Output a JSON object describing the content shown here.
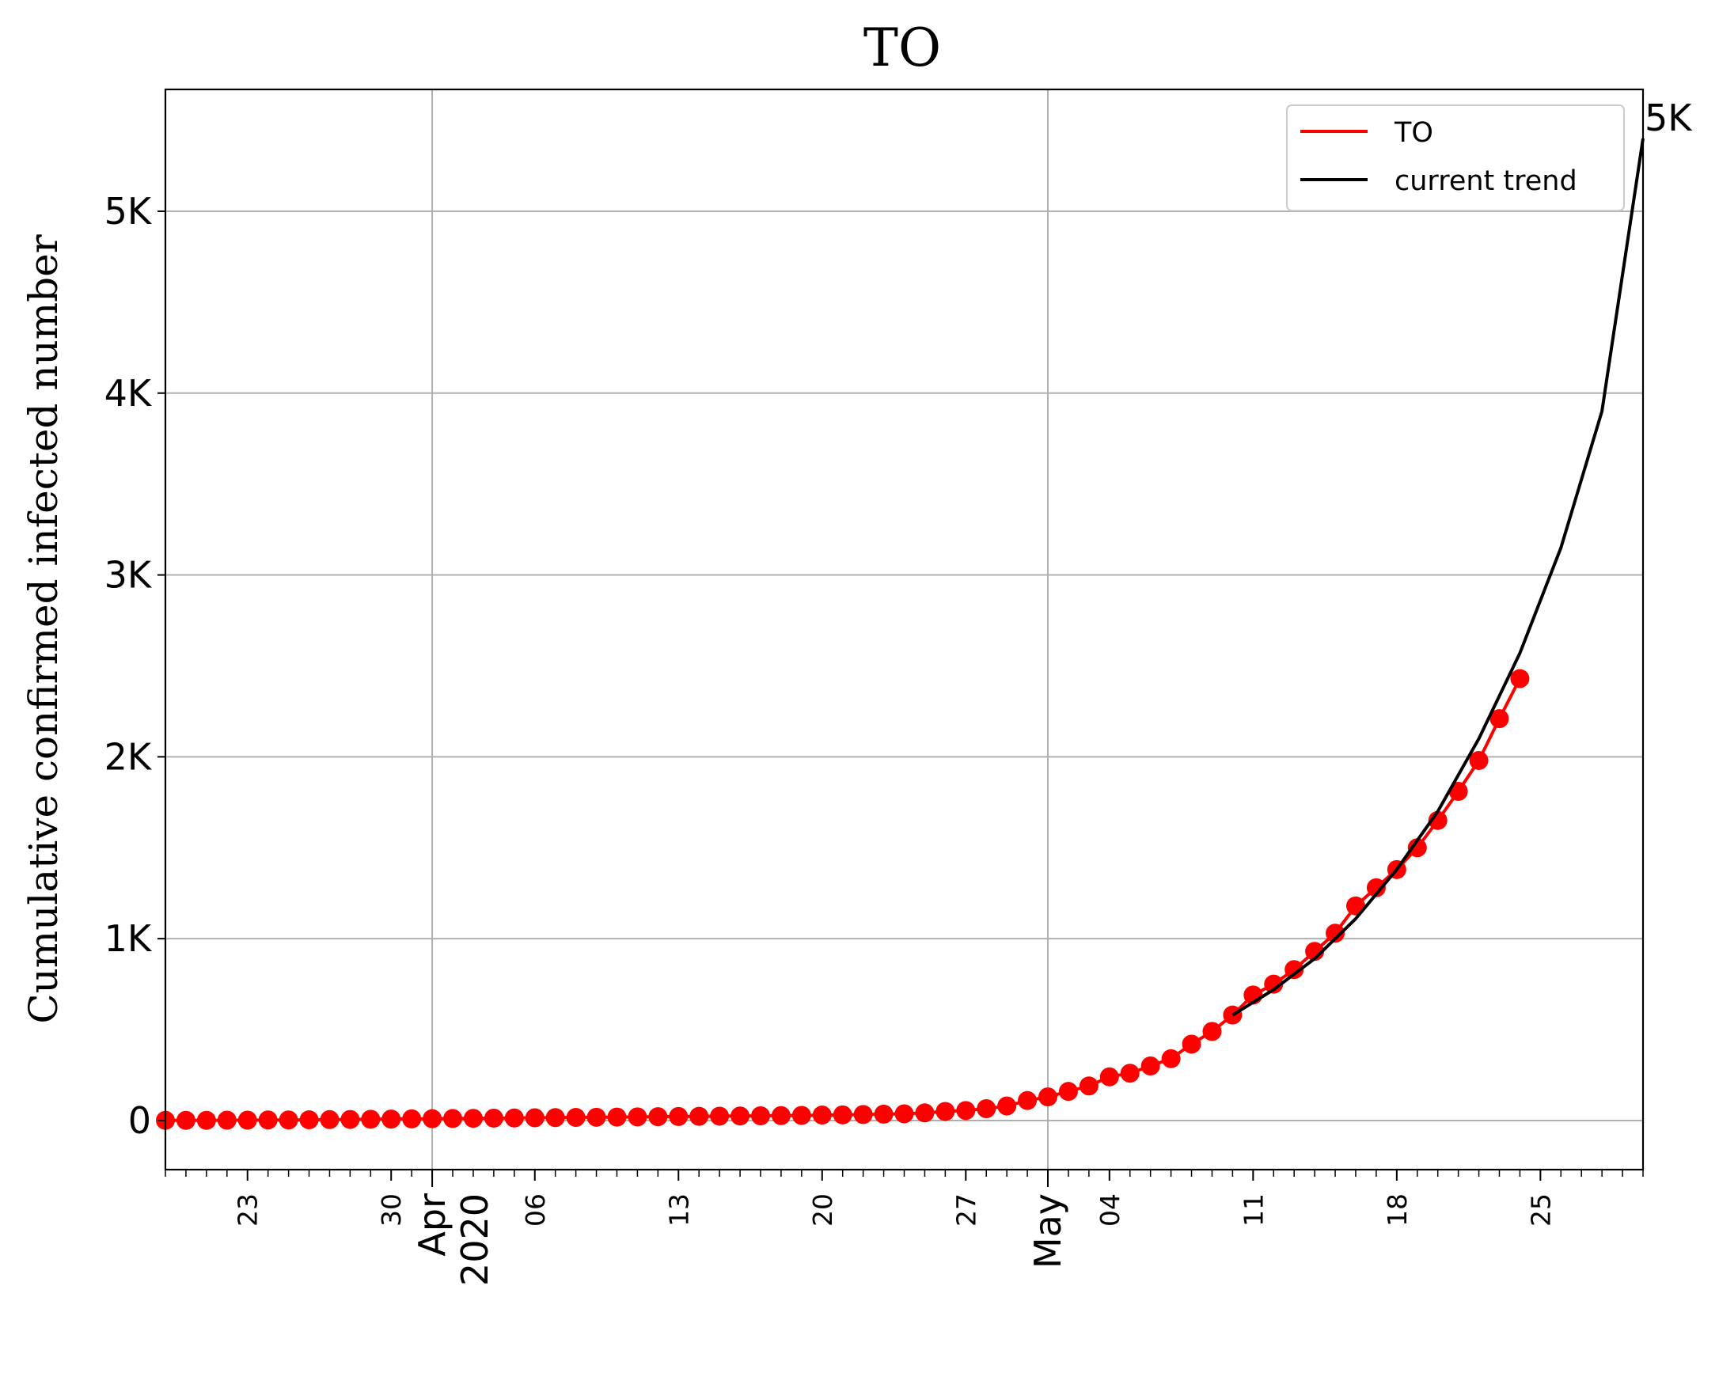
{
  "chart_data": {
    "type": "line",
    "title": "TO",
    "ylabel": "Cumulative confirmed infected number",
    "xlabel": "",
    "x_axis": {
      "type": "date",
      "range": [
        "2020-03-19",
        "2020-05-30"
      ],
      "minor_tick_labels": [
        {
          "date": "2020-03-23",
          "label": "23"
        },
        {
          "date": "2020-03-30",
          "label": "30"
        },
        {
          "date": "2020-04-06",
          "label": "06"
        },
        {
          "date": "2020-04-13",
          "label": "13"
        },
        {
          "date": "2020-04-20",
          "label": "20"
        },
        {
          "date": "2020-04-27",
          "label": "27"
        },
        {
          "date": "2020-05-04",
          "label": "04"
        },
        {
          "date": "2020-05-11",
          "label": "11"
        },
        {
          "date": "2020-05-18",
          "label": "18"
        },
        {
          "date": "2020-05-25",
          "label": "25"
        }
      ],
      "major_tick_labels": [
        {
          "date": "2020-04-01",
          "lines": [
            "Apr",
            "2020"
          ]
        },
        {
          "date": "2020-05-01",
          "lines": [
            "May"
          ]
        }
      ]
    },
    "y_axis": {
      "range": [
        -270,
        5670
      ],
      "ticks": [
        {
          "value": 0,
          "label": "0"
        },
        {
          "value": 1000,
          "label": "1K"
        },
        {
          "value": 2000,
          "label": "2K"
        },
        {
          "value": 3000,
          "label": "3K"
        },
        {
          "value": 4000,
          "label": "4K"
        },
        {
          "value": 5000,
          "label": "5K"
        }
      ]
    },
    "grid": true,
    "legend": {
      "position": "top-right",
      "entries": [
        {
          "label": "TO",
          "color": "#ff0000"
        },
        {
          "label": "current trend",
          "color": "#000000"
        }
      ]
    },
    "series": [
      {
        "name": "TO",
        "color": "#ff0000",
        "style": "line+markers",
        "points": [
          [
            "2020-03-19",
            1
          ],
          [
            "2020-03-20",
            1
          ],
          [
            "2020-03-21",
            1
          ],
          [
            "2020-03-22",
            2
          ],
          [
            "2020-03-23",
            2
          ],
          [
            "2020-03-24",
            3
          ],
          [
            "2020-03-25",
            3
          ],
          [
            "2020-03-26",
            4
          ],
          [
            "2020-03-27",
            5
          ],
          [
            "2020-03-28",
            6
          ],
          [
            "2020-03-29",
            7
          ],
          [
            "2020-03-30",
            8
          ],
          [
            "2020-03-31",
            9
          ],
          [
            "2020-04-01",
            10
          ],
          [
            "2020-04-02",
            11
          ],
          [
            "2020-04-03",
            12
          ],
          [
            "2020-04-04",
            13
          ],
          [
            "2020-04-05",
            14
          ],
          [
            "2020-04-06",
            15
          ],
          [
            "2020-04-07",
            16
          ],
          [
            "2020-04-08",
            17
          ],
          [
            "2020-04-09",
            18
          ],
          [
            "2020-04-10",
            19
          ],
          [
            "2020-04-11",
            20
          ],
          [
            "2020-04-12",
            21
          ],
          [
            "2020-04-13",
            22
          ],
          [
            "2020-04-14",
            23
          ],
          [
            "2020-04-15",
            24
          ],
          [
            "2020-04-16",
            25
          ],
          [
            "2020-04-17",
            26
          ],
          [
            "2020-04-18",
            27
          ],
          [
            "2020-04-19",
            28
          ],
          [
            "2020-04-20",
            30
          ],
          [
            "2020-04-21",
            31
          ],
          [
            "2020-04-22",
            33
          ],
          [
            "2020-04-23",
            35
          ],
          [
            "2020-04-24",
            37
          ],
          [
            "2020-04-25",
            42
          ],
          [
            "2020-04-26",
            50
          ],
          [
            "2020-04-27",
            55
          ],
          [
            "2020-04-28",
            65
          ],
          [
            "2020-04-29",
            80
          ],
          [
            "2020-04-30",
            110
          ],
          [
            "2020-05-01",
            130
          ],
          [
            "2020-05-02",
            160
          ],
          [
            "2020-05-03",
            190
          ],
          [
            "2020-05-04",
            240
          ],
          [
            "2020-05-05",
            260
          ],
          [
            "2020-05-06",
            300
          ],
          [
            "2020-05-07",
            340
          ],
          [
            "2020-05-08",
            420
          ],
          [
            "2020-05-09",
            490
          ],
          [
            "2020-05-10",
            580
          ],
          [
            "2020-05-11",
            690
          ],
          [
            "2020-05-12",
            750
          ],
          [
            "2020-05-13",
            830
          ],
          [
            "2020-05-14",
            930
          ],
          [
            "2020-05-15",
            1030
          ],
          [
            "2020-05-16",
            1180
          ],
          [
            "2020-05-17",
            1280
          ],
          [
            "2020-05-18",
            1380
          ],
          [
            "2020-05-19",
            1500
          ],
          [
            "2020-05-20",
            1650
          ],
          [
            "2020-05-21",
            1810
          ],
          [
            "2020-05-22",
            1980
          ],
          [
            "2020-05-23",
            2210
          ],
          [
            "2020-05-24",
            2430
          ]
        ]
      },
      {
        "name": "current trend",
        "color": "#000000",
        "style": "line",
        "points": [
          [
            "2020-05-10",
            580
          ],
          [
            "2020-05-12",
            720
          ],
          [
            "2020-05-14",
            890
          ],
          [
            "2020-05-16",
            1110
          ],
          [
            "2020-05-18",
            1380
          ],
          [
            "2020-05-20",
            1700
          ],
          [
            "2020-05-22",
            2100
          ],
          [
            "2020-05-24",
            2570
          ],
          [
            "2020-05-26",
            3150
          ],
          [
            "2020-05-28",
            3900
          ],
          [
            "2020-05-30",
            5400
          ]
        ]
      }
    ],
    "annotation": {
      "text": "5K",
      "date": "2020-05-30",
      "value": 5400
    }
  }
}
